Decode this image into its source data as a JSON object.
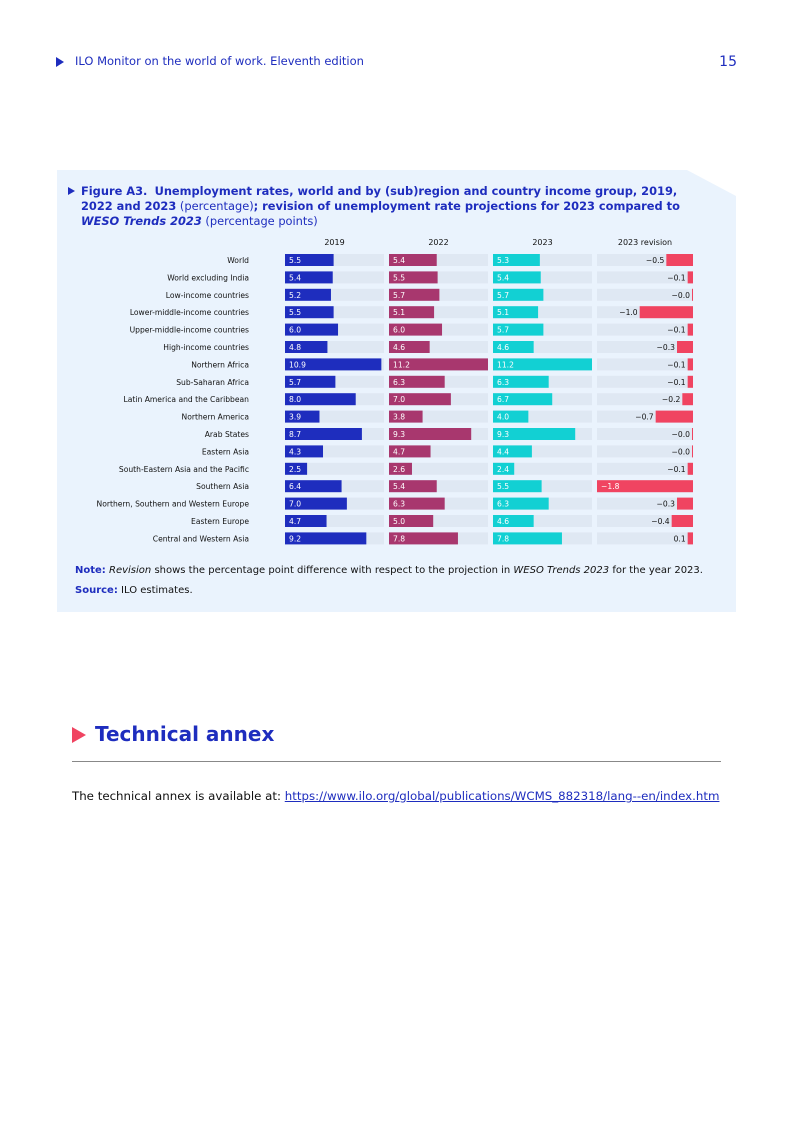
{
  "header": {
    "title": "ILO Monitor on the world of work. Eleventh edition",
    "page_number": "15"
  },
  "figure": {
    "label": "Figure A3.",
    "title_part1": "Unemployment rates, world and by (sub)region and country income group, 2019, 2022 and 2023",
    "title_paren1": "(percentage)",
    "title_part2": "; revision of unemployment rate projections for 2023 compared to",
    "title_italic": "WESO Trends 2023",
    "title_paren2": "(percentage points)",
    "note_label": "Note:",
    "note_italic1": "Revision",
    "note_text1": "shows the percentage point difference with respect to the projection in",
    "note_italic2": "WESO Trends 2023",
    "note_text2": "for the year 2023.",
    "source_label": "Source:",
    "source_text": "ILO estimates."
  },
  "chart_data": {
    "type": "bar",
    "title": "Unemployment rates, world and by (sub)region and country income group, 2019, 2022 and 2023 (percentage); revision of unemployment rate projections for 2023 compared to WESO Trends 2023 (percentage points)",
    "categories": [
      "World",
      "World excluding India",
      "Low-income countries",
      "Lower-middle-income countries",
      "Upper-middle-income countries",
      "High-income countries",
      "Northern Africa",
      "Sub-Saharan Africa",
      "Latin America and the Caribbean",
      "Northern America",
      "Arab States",
      "Eastern Asia",
      "South-Eastern Asia and the Pacific",
      "Southern Asia",
      "Northern, Southern and Western Europe",
      "Eastern Europe",
      "Central and Western Asia"
    ],
    "series": [
      {
        "name": "2019",
        "color": "#1e2dbe",
        "values": [
          "5.5",
          "5.4",
          "5.2",
          "5.5",
          "6.0",
          "4.8",
          "10.9",
          "5.7",
          "8.0",
          "3.9",
          "8.7",
          "4.3",
          "2.5",
          "6.4",
          "7.0",
          "4.7",
          "9.2"
        ]
      },
      {
        "name": "2022",
        "color": "#a8376e",
        "values": [
          "5.4",
          "5.5",
          "5.7",
          "5.1",
          "6.0",
          "4.6",
          "11.2",
          "6.3",
          "7.0",
          "3.8",
          "9.3",
          "4.7",
          "2.6",
          "5.4",
          "6.3",
          "5.0",
          "7.8"
        ]
      },
      {
        "name": "2023",
        "color": "#12d0d3",
        "values": [
          "5.3",
          "5.4",
          "5.7",
          "5.1",
          "5.7",
          "4.6",
          "11.2",
          "6.3",
          "6.7",
          "4.0",
          "9.3",
          "4.4",
          "2.4",
          "5.5",
          "6.3",
          "4.6",
          "7.8"
        ]
      },
      {
        "name": "2023 revision",
        "color": "#f04461",
        "values": [
          "−0.5",
          "−0.1",
          "−0.0",
          "−1.0",
          "−0.1",
          "−0.3",
          "−0.1",
          "−0.1",
          "−0.2",
          "−0.7",
          "−0.0",
          "−0.0",
          "−0.1",
          "−1.8",
          "−0.3",
          "−0.4",
          "0.1"
        ]
      }
    ],
    "xlim": [
      0,
      11.2
    ],
    "revision_lim": [
      -1.8,
      0.1
    ],
    "legend": "none"
  },
  "annex": {
    "heading": "Technical annex",
    "text": "The technical annex is available at:",
    "link": "https://www.ilo.org/global/publications/WCMS_882318/lang--en/index.htm"
  },
  "colors": {
    "brand_blue": "#1e2dbe",
    "panel_bg": "#eaf3fd",
    "track": "#dfe8f3",
    "accent_red": "#f04461"
  }
}
